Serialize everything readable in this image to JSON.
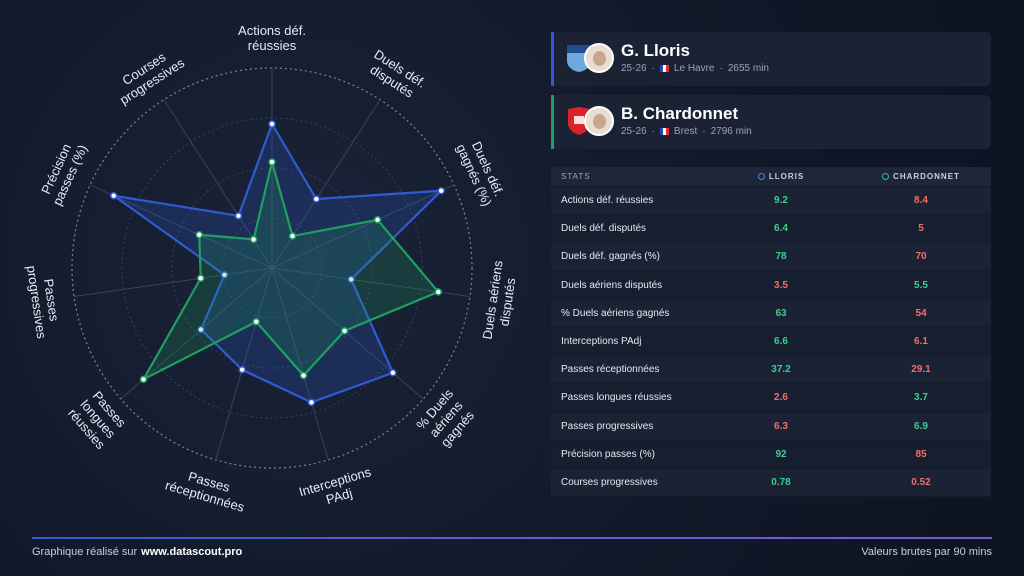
{
  "chart_data": {
    "type": "radar",
    "categories": [
      "Actions déf. réussies",
      "Duels déf. disputés",
      "Duels déf. gagnés (%)",
      "Duels aériens disputés",
      "% Duels aériens gagnés",
      "Interceptions PAdj",
      "Passes réceptionnées",
      "Passes longues réussies",
      "Passes progressives",
      "Précision passes (%)",
      "Courses progressives"
    ],
    "rlim": [
      0,
      100
    ],
    "rticks": [
      25,
      50,
      75,
      100
    ],
    "series": [
      {
        "name": "G. Lloris",
        "color": "#2f5bd3",
        "values": [
          72,
          41,
          93,
          40,
          80,
          70,
          53,
          47,
          24,
          87,
          31
        ]
      },
      {
        "name": "B. Chardonnet",
        "color": "#1fa060",
        "values": [
          53,
          19,
          58,
          84,
          48,
          56,
          28,
          85,
          36,
          40,
          17
        ]
      }
    ]
  },
  "players": [
    {
      "season": "25-26",
      "club": "Le Havre",
      "minutes": "2655 min"
    },
    {
      "season": "25-26",
      "club": "Brest",
      "minutes": "2796 min"
    }
  ],
  "table": {
    "header": [
      "STATS",
      "LLORIS",
      "CHARDONNET"
    ],
    "rows": [
      [
        "Actions déf. réussies",
        9.2,
        8.4
      ],
      [
        "Duels déf. disputés",
        6.4,
        5.0
      ],
      [
        "Duels déf. gagnés (%)",
        78,
        70
      ],
      [
        "Duels aériens disputés",
        3.5,
        5.5
      ],
      [
        "% Duels aériens gagnés",
        63,
        54
      ],
      [
        "Interceptions PAdj",
        6.6,
        6.1
      ],
      [
        "Passes réceptionnées",
        37.2,
        29.1
      ],
      [
        "Passes longues réussies",
        2.6,
        3.7
      ],
      [
        "Passes progressives",
        6.3,
        6.9
      ],
      [
        "Précision passes (%)",
        92,
        85
      ],
      [
        "Courses progressives",
        0.78,
        0.52
      ]
    ]
  },
  "footer": {
    "credit_prefix": "Graphique réalisé sur",
    "credit_site": "www.datascout.pro",
    "note": "Valeurs brutes par 90 mins"
  }
}
